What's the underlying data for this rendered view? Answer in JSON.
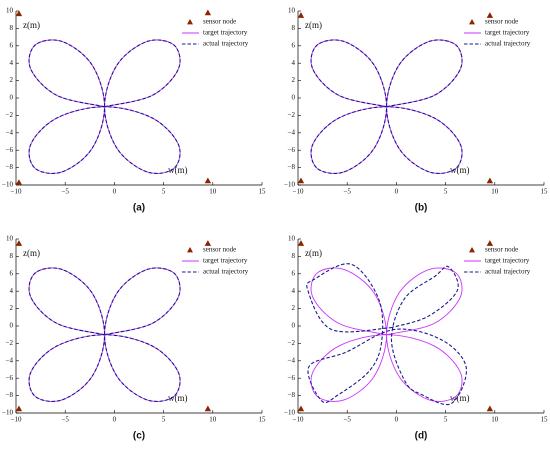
{
  "chart_data": [
    {
      "type": "line",
      "label": "(a)",
      "x_label": "w(m)",
      "y_label": "z(m)",
      "xlim": [
        -10,
        15
      ],
      "ylim": [
        -10,
        10
      ],
      "xticks": [
        -10,
        -5,
        0,
        5,
        10,
        15
      ],
      "yticks": [
        -10,
        -8,
        -6,
        -4,
        -2,
        0,
        2,
        4,
        6,
        8,
        10
      ],
      "legend": "upper right",
      "series": [
        {
          "name": "sensor node",
          "color": "#8b2500",
          "mode": "markers",
          "x": [
            -9.7,
            9.5,
            -9.7,
            9.5
          ],
          "values": [
            9.7,
            9.8,
            -9.7,
            -9.5
          ]
        },
        {
          "name": "target trajectory",
          "color": "#cc33ff",
          "mode": "line",
          "x": [
            -1,
            3.83,
            6.5,
            6.07,
            3.33,
            0.29,
            -1,
            0.29,
            3.33,
            6.07,
            6.5,
            3.83,
            -1,
            -5.83,
            -8.5,
            -8.07,
            -5.33,
            -2.29,
            -1,
            -2.29,
            -5.33,
            -8.07,
            -8.5,
            -5.83,
            -1
          ],
          "values": [
            -1,
            0.29,
            3.33,
            6.07,
            6.5,
            3.83,
            -1,
            -5.83,
            -8.5,
            -8.07,
            -5.33,
            -2.29,
            -1,
            -2.29,
            -5.33,
            -8.07,
            -8.5,
            -5.83,
            -1,
            3.83,
            6.5,
            6.07,
            3.33,
            0.29,
            -1
          ]
        },
        {
          "name": "actual trajectory",
          "color": "#1a1a8c",
          "mode": "dashed",
          "x": [
            -1,
            3.83,
            6.5,
            6.07,
            3.33,
            0.29,
            -1,
            0.29,
            3.33,
            6.07,
            6.5,
            3.83,
            -1,
            -5.83,
            -8.5,
            -8.07,
            -5.33,
            -2.29,
            -1,
            -2.29,
            -5.33,
            -8.07,
            -8.5,
            -5.83,
            -1
          ],
          "values": [
            -1,
            0.29,
            3.33,
            6.07,
            6.5,
            3.83,
            -1,
            -5.83,
            -8.5,
            -8.07,
            -5.33,
            -2.29,
            -1,
            -2.29,
            -5.33,
            -8.07,
            -8.5,
            -5.83,
            -1,
            3.83,
            6.5,
            6.07,
            3.33,
            0.29,
            -1
          ]
        }
      ]
    },
    {
      "type": "line",
      "label": "(b)",
      "x_label": "w(m)",
      "y_label": "z(m)",
      "xlim": [
        -10,
        15
      ],
      "ylim": [
        -10,
        10
      ],
      "xticks": [
        -10,
        -5,
        0,
        5,
        10,
        15
      ],
      "yticks": [
        -10,
        -8,
        -6,
        -4,
        -2,
        0,
        2,
        4,
        6,
        8,
        10
      ],
      "legend": "upper right",
      "series": [
        {
          "name": "sensor node",
          "color": "#8b2500",
          "mode": "markers",
          "x": [
            -9.7,
            9.5,
            -9.7,
            9.5
          ],
          "values": [
            9.5,
            9.5,
            -9.5,
            -9.5
          ]
        },
        {
          "name": "target trajectory",
          "color": "#cc33ff",
          "mode": "line",
          "x": [
            -1,
            3.83,
            6.5,
            6.07,
            3.33,
            0.29,
            -1,
            0.29,
            3.33,
            6.07,
            6.5,
            3.83,
            -1,
            -5.83,
            -8.5,
            -8.07,
            -5.33,
            -2.29,
            -1,
            -2.29,
            -5.33,
            -8.07,
            -8.5,
            -5.83,
            -1
          ],
          "values": [
            -1,
            0.29,
            3.33,
            6.07,
            6.5,
            3.83,
            -1,
            -5.83,
            -8.5,
            -8.07,
            -5.33,
            -2.29,
            -1,
            -2.29,
            -5.33,
            -8.07,
            -8.5,
            -5.83,
            -1,
            3.83,
            6.5,
            6.07,
            3.33,
            0.29,
            -1
          ]
        },
        {
          "name": "actual trajectory",
          "color": "#1a1a8c",
          "mode": "dashed",
          "x": [
            -1,
            3.83,
            6.5,
            6.07,
            3.33,
            0.29,
            -1,
            0.29,
            3.33,
            6.07,
            6.5,
            3.83,
            -1,
            -5.83,
            -8.5,
            -8.07,
            -5.33,
            -2.29,
            -1,
            -2.29,
            -5.33,
            -8.07,
            -8.5,
            -5.83,
            -1
          ],
          "values": [
            -1,
            0.29,
            3.33,
            6.07,
            6.5,
            3.83,
            -1,
            -5.83,
            -8.5,
            -8.07,
            -5.33,
            -2.29,
            -1,
            -2.29,
            -5.33,
            -8.07,
            -8.5,
            -5.83,
            -1,
            3.83,
            6.5,
            6.07,
            3.33,
            0.29,
            -1
          ]
        }
      ]
    },
    {
      "type": "line",
      "label": "(c)",
      "x_label": "w(m)",
      "y_label": "z(m)",
      "xlim": [
        -10,
        15
      ],
      "ylim": [
        -10,
        10
      ],
      "xticks": [
        -10,
        -5,
        0,
        5,
        10,
        15
      ],
      "yticks": [
        -10,
        -8,
        -6,
        -4,
        -2,
        0,
        2,
        4,
        6,
        8,
        10
      ],
      "legend": "upper right",
      "series": [
        {
          "name": "sensor node",
          "color": "#8b2500",
          "mode": "markers",
          "x": [
            -9.7,
            9.5,
            -9.7,
            9.5
          ],
          "values": [
            9.5,
            9.5,
            -9.5,
            -9.5
          ]
        },
        {
          "name": "target trajectory",
          "color": "#cc33ff",
          "mode": "line",
          "x": [
            -1,
            3.83,
            6.5,
            6.07,
            3.33,
            0.29,
            -1,
            0.29,
            3.33,
            6.07,
            6.5,
            3.83,
            -1,
            -5.83,
            -8.5,
            -8.07,
            -5.33,
            -2.29,
            -1,
            -2.29,
            -5.33,
            -8.07,
            -8.5,
            -5.83,
            -1
          ],
          "values": [
            -1,
            0.29,
            3.33,
            6.07,
            6.5,
            3.83,
            -1,
            -5.83,
            -8.5,
            -8.07,
            -5.33,
            -2.29,
            -1,
            -2.29,
            -5.33,
            -8.07,
            -8.5,
            -5.83,
            -1,
            3.83,
            6.5,
            6.07,
            3.33,
            0.29,
            -1
          ]
        },
        {
          "name": "actual trajectory",
          "color": "#1a1a8c",
          "mode": "dashed",
          "x": [
            -1,
            3.83,
            6.5,
            6.07,
            3.33,
            0.29,
            -1,
            0.29,
            3.33,
            6.07,
            6.5,
            3.83,
            -1,
            -5.83,
            -8.5,
            -8.07,
            -5.33,
            -2.29,
            -1,
            -2.29,
            -5.33,
            -8.07,
            -8.5,
            -5.83,
            -1
          ],
          "values": [
            -1,
            0.29,
            3.33,
            6.07,
            6.5,
            3.83,
            -1,
            -5.83,
            -8.5,
            -8.07,
            -5.33,
            -2.29,
            -1,
            -2.29,
            -5.33,
            -8.07,
            -8.5,
            -5.83,
            -1,
            3.83,
            6.5,
            6.07,
            3.33,
            0.29,
            -1
          ]
        }
      ]
    },
    {
      "type": "line",
      "label": "(d)",
      "x_label": "w(m)",
      "y_label": "z(m)",
      "xlim": [
        -10,
        15
      ],
      "ylim": [
        -10,
        10
      ],
      "xticks": [
        -10,
        -5,
        0,
        5,
        10,
        15
      ],
      "yticks": [
        -10,
        -8,
        -6,
        -4,
        -2,
        0,
        2,
        4,
        6,
        8,
        10
      ],
      "legend": "upper right",
      "series": [
        {
          "name": "sensor node",
          "color": "#8b2500",
          "mode": "markers",
          "x": [
            -9.7,
            9.5,
            -9.7,
            9.5
          ],
          "values": [
            9.5,
            9.5,
            -9.5,
            -9.5
          ]
        },
        {
          "name": "target trajectory",
          "color": "#cc33ff",
          "mode": "line",
          "x": [
            -1,
            3.83,
            6.5,
            6.07,
            3.33,
            0.29,
            -1,
            0.29,
            3.33,
            6.07,
            6.5,
            3.83,
            -1,
            -5.83,
            -8.5,
            -8.07,
            -5.33,
            -2.29,
            -1,
            -2.29,
            -5.33,
            -8.07,
            -8.5,
            -5.83,
            -1
          ],
          "values": [
            -1,
            0.29,
            3.33,
            6.07,
            6.5,
            3.83,
            -1,
            -5.83,
            -8.5,
            -8.07,
            -5.33,
            -2.29,
            -1,
            -2.29,
            -5.33,
            -8.07,
            -8.5,
            -5.83,
            -1,
            3.83,
            6.5,
            6.07,
            3.33,
            0.29,
            -1
          ]
        },
        {
          "name": "actual trajectory",
          "color": "#1a1a8c",
          "mode": "dashed",
          "x": [
            -0.6,
            3.2,
            6.2,
            5.3,
            3.9,
            0.8,
            -0.5,
            0.9,
            2.6,
            5.6,
            7.1,
            4.6,
            -0.2,
            -5.1,
            -8.9,
            -7.6,
            -5.9,
            -2.7,
            -1.5,
            -1.8,
            -4.6,
            -8.3,
            -9.0,
            -6.6,
            -0.6
          ],
          "values": [
            -0.2,
            1.1,
            4.1,
            6.8,
            5.7,
            3.1,
            -1.6,
            -6.4,
            -7.9,
            -8.9,
            -4.8,
            -1.6,
            -0.4,
            -3.0,
            -4.7,
            -8.6,
            -7.9,
            -5.1,
            -1.8,
            3.1,
            7.1,
            5.4,
            4.1,
            -0.4,
            -0.2
          ]
        }
      ]
    }
  ]
}
